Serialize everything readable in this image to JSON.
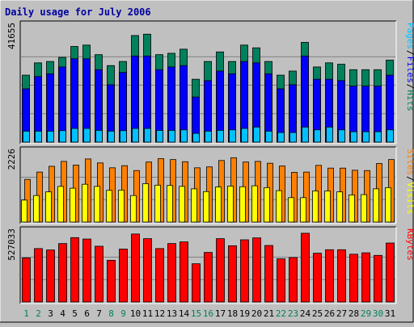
{
  "title": "Daily usage for July 2006",
  "colors": {
    "background": "#c0c0c0",
    "panel": "#c0c0c0",
    "title_text": "#0000a0",
    "hits": "#00805c",
    "files": "#0000ff",
    "pages": "#00c0ff",
    "visits": "#ffff00",
    "sites": "#ff8000",
    "kbytes": "#ff0000",
    "weekend_label": "#00805c",
    "weekday_label": "#000000"
  },
  "legend": {
    "top": [
      {
        "label": "Pages",
        "color": "#00c0ff"
      },
      {
        "label": "/",
        "color": "#000000"
      },
      {
        "label": "Files",
        "color": "#0000ff"
      },
      {
        "label": "/",
        "color": "#000000"
      },
      {
        "label": "Hits",
        "color": "#00805c"
      }
    ],
    "middle": [
      {
        "label": "Sites",
        "color": "#ff8000"
      },
      {
        "label": "/",
        "color": "#000000"
      },
      {
        "label": "Visits",
        "color": "#ffff00"
      }
    ],
    "bottom": [
      {
        "label": "KBytes",
        "color": "#ff0000"
      }
    ]
  },
  "chart_data": {
    "type": "bar",
    "title": "Daily usage for July 2006",
    "categories": [
      "1",
      "2",
      "3",
      "4",
      "5",
      "6",
      "7",
      "8",
      "9",
      "10",
      "11",
      "12",
      "13",
      "14",
      "15",
      "16",
      "17",
      "18",
      "19",
      "20",
      "21",
      "22",
      "23",
      "24",
      "25",
      "26",
      "27",
      "28",
      "29",
      "30",
      "31"
    ],
    "weekend_days": [
      "1",
      "2",
      "8",
      "9",
      "15",
      "16",
      "22",
      "23",
      "29",
      "30"
    ],
    "panels": [
      {
        "id": "top",
        "ymax_label": "41655",
        "ylim": [
          0,
          41655
        ],
        "series": [
          {
            "name": "Hits",
            "color": "#00805c",
            "values": [
              24500,
              29000,
              29500,
              31000,
              35000,
              35500,
              32000,
              28000,
              29500,
              39000,
              39500,
              32000,
              32500,
              34000,
              23000,
              29500,
              33000,
              29500,
              35500,
              34500,
              29500,
              24500,
              26000,
              36500,
              27500,
              29000,
              28500,
              26500,
              26500,
              26500,
              30000
            ]
          },
          {
            "name": "Files",
            "color": "#0000ff",
            "values": [
              19500,
              24000,
              25000,
              27500,
              30500,
              30500,
              26500,
              21000,
              25500,
              31500,
              31500,
              26500,
              27500,
              28000,
              16500,
              22500,
              26000,
              25000,
              29500,
              29000,
              25000,
              19500,
              21000,
              31500,
              23000,
              23000,
              22500,
              20500,
              20500,
              20500,
              24500
            ]
          },
          {
            "name": "Pages",
            "color": "#00c0ff",
            "values": [
              4000,
              4000,
              4000,
              4200,
              5000,
              5000,
              4300,
              4000,
              4200,
              5000,
              5000,
              4300,
              4300,
              4500,
              3200,
              4000,
              4300,
              4500,
              5000,
              5500,
              4000,
              3500,
              3500,
              5500,
              4500,
              5500,
              4500,
              3800,
              3800,
              3800,
              4500
            ]
          }
        ]
      },
      {
        "id": "middle",
        "ymax_label": "2226",
        "ylim": [
          0,
          2226
        ],
        "series": [
          {
            "name": "Sites",
            "color": "#ff8000",
            "values": [
              1400,
              1640,
              1830,
              1990,
              1870,
              2070,
              1940,
              1780,
              1850,
              1690,
              1970,
              2080,
              2050,
              1980,
              1780,
              1810,
              2020,
              2110,
              1970,
              1990,
              1930,
              1840,
              1630,
              1640,
              1860,
              1770,
              1770,
              1700,
              1690,
              1920,
              2050
            ]
          },
          {
            "name": "Visits",
            "color": "#ffff00",
            "values": [
              720,
              870,
              990,
              1170,
              1110,
              1240,
              1170,
              1040,
              1050,
              870,
              1260,
              1210,
              1200,
              1170,
              1090,
              1000,
              1150,
              1180,
              1160,
              1190,
              1130,
              1030,
              800,
              800,
              1020,
              1020,
              990,
              890,
              900,
              1090,
              1130
            ]
          }
        ]
      },
      {
        "id": "bottom",
        "ymax_label": "527033",
        "ylim": [
          0,
          527033
        ],
        "series": [
          {
            "name": "KBytes",
            "color": "#ff0000",
            "values": [
              342000,
              415000,
              404000,
              454000,
              500000,
              489000,
              433000,
              324000,
              411000,
              528000,
              492000,
              415000,
              454000,
              467000,
              297000,
              385000,
              492000,
              437000,
              483000,
              498000,
              439000,
              335000,
              345000,
              534000,
              379000,
              406000,
              406000,
              371000,
              382000,
              362000,
              458000
            ]
          }
        ]
      }
    ]
  }
}
